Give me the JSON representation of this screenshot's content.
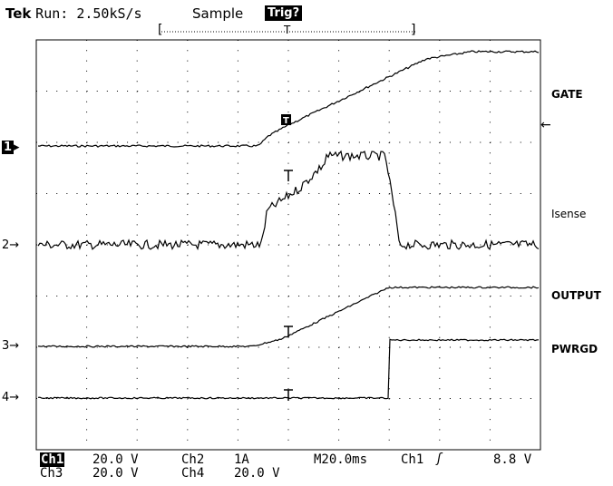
{
  "header": {
    "brand": "Tek",
    "run_status": "Run: 2.50kS/s",
    "acq_mode": "Sample",
    "trigger_status": "Trig?",
    "bracket_left": "[",
    "bracket_right": "]",
    "trigger_pos_marker": "T"
  },
  "traces": [
    {
      "marker": "1",
      "label": "GATE",
      "color": "#000000"
    },
    {
      "marker": "2",
      "label": "Isense",
      "color": "#000000"
    },
    {
      "marker": "3",
      "label": "OUTPUT",
      "color": "#000000"
    },
    {
      "marker": "4",
      "label": "PWRGD",
      "color": "#000000"
    }
  ],
  "trigger_level_arrow": "←",
  "footer": {
    "row1": {
      "ch1_name": "Ch1",
      "ch1_scale": "20.0 V",
      "ch2_name": "Ch2",
      "ch2_scale": "1A",
      "timebase": "M20.0ms",
      "trig_source": "Ch1",
      "trig_slope": "ʃ",
      "trig_level": "8.8 V"
    },
    "row2": {
      "ch3_name": "Ch3",
      "ch3_scale": "20.0 V",
      "ch4_name": "Ch4",
      "ch4_scale": "20.0 V"
    }
  },
  "colors": {
    "background": "#ffffff",
    "grid": "#000000",
    "trace": "#000000"
  }
}
